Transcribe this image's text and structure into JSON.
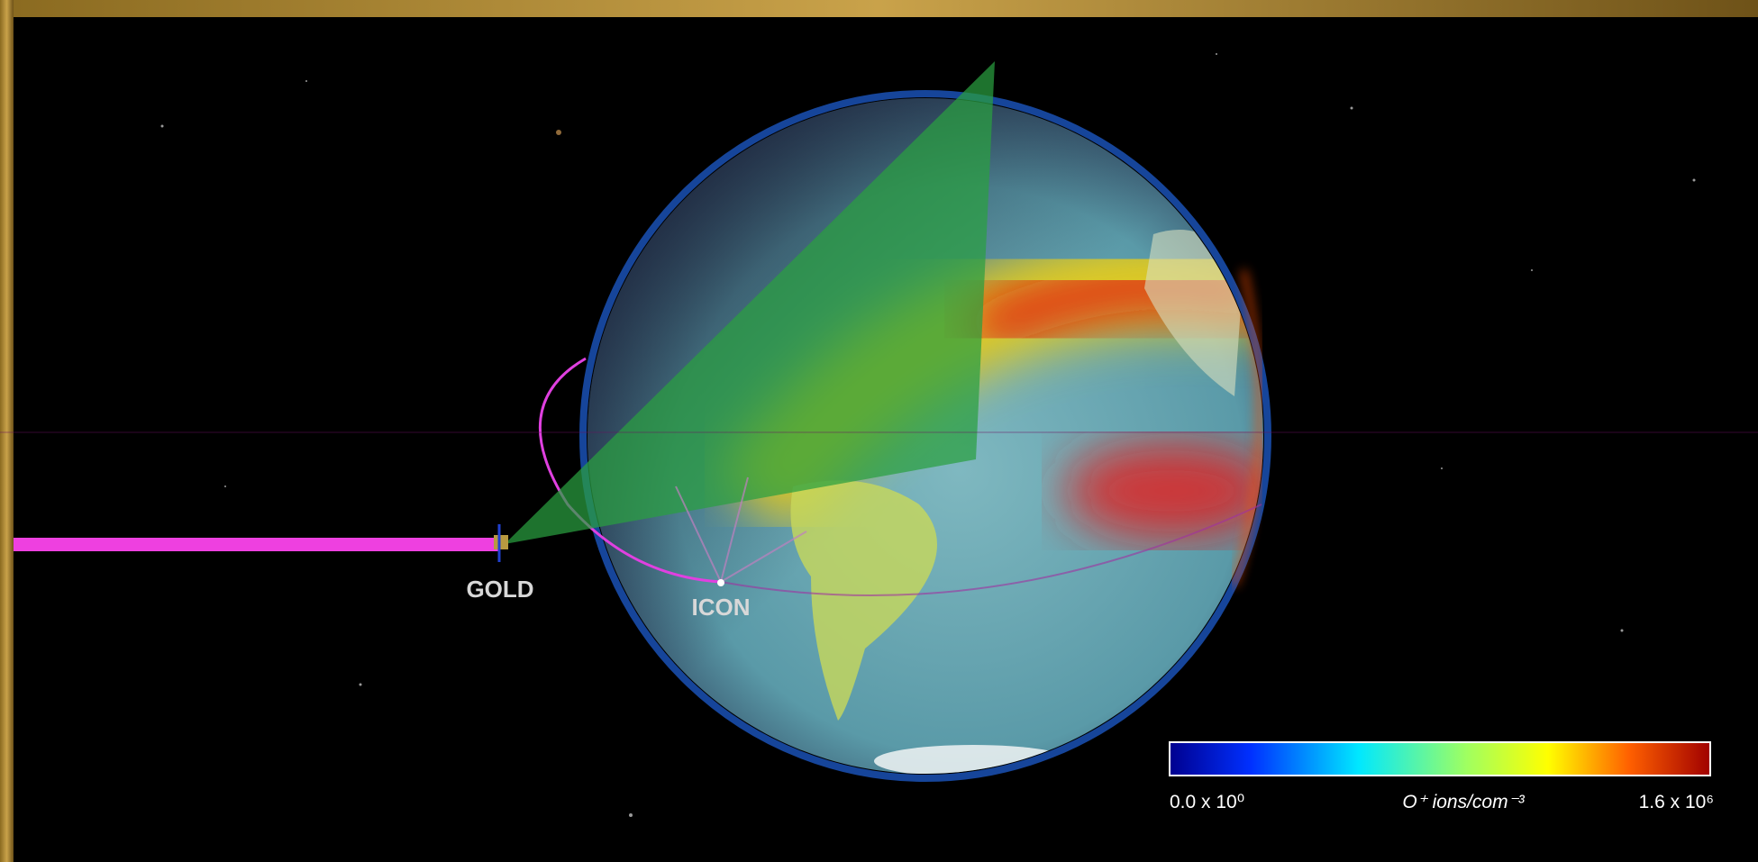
{
  "labels": {
    "gold": "GOLD",
    "icon": "ICON"
  },
  "colorbar": {
    "min_label": "0.0 x 10⁰",
    "unit_label": "O⁺ ions/com⁻³",
    "max_label": "1.6 x 10⁶"
  }
}
